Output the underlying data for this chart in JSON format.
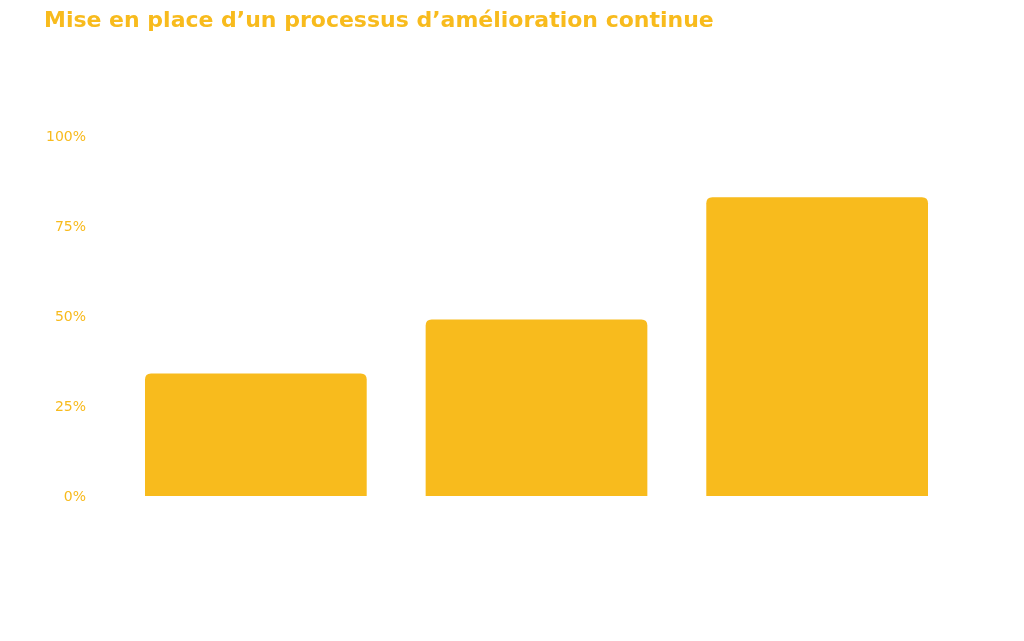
{
  "chart_data": {
    "type": "bar",
    "title": "Mise en place d’un processus d’amélioration continue",
    "categories": [
      null,
      null,
      null
    ],
    "values": [
      34,
      49,
      83
    ],
    "color": "#f8bb1d",
    "ylim": [
      0,
      100
    ],
    "yticks": [
      {
        "value": 0,
        "label": "0%"
      },
      {
        "value": 25,
        "label": "25%"
      },
      {
        "value": 50,
        "label": "50%"
      },
      {
        "value": 75,
        "label": "75%"
      },
      {
        "value": 100,
        "label": "100%"
      }
    ],
    "grid": false
  }
}
